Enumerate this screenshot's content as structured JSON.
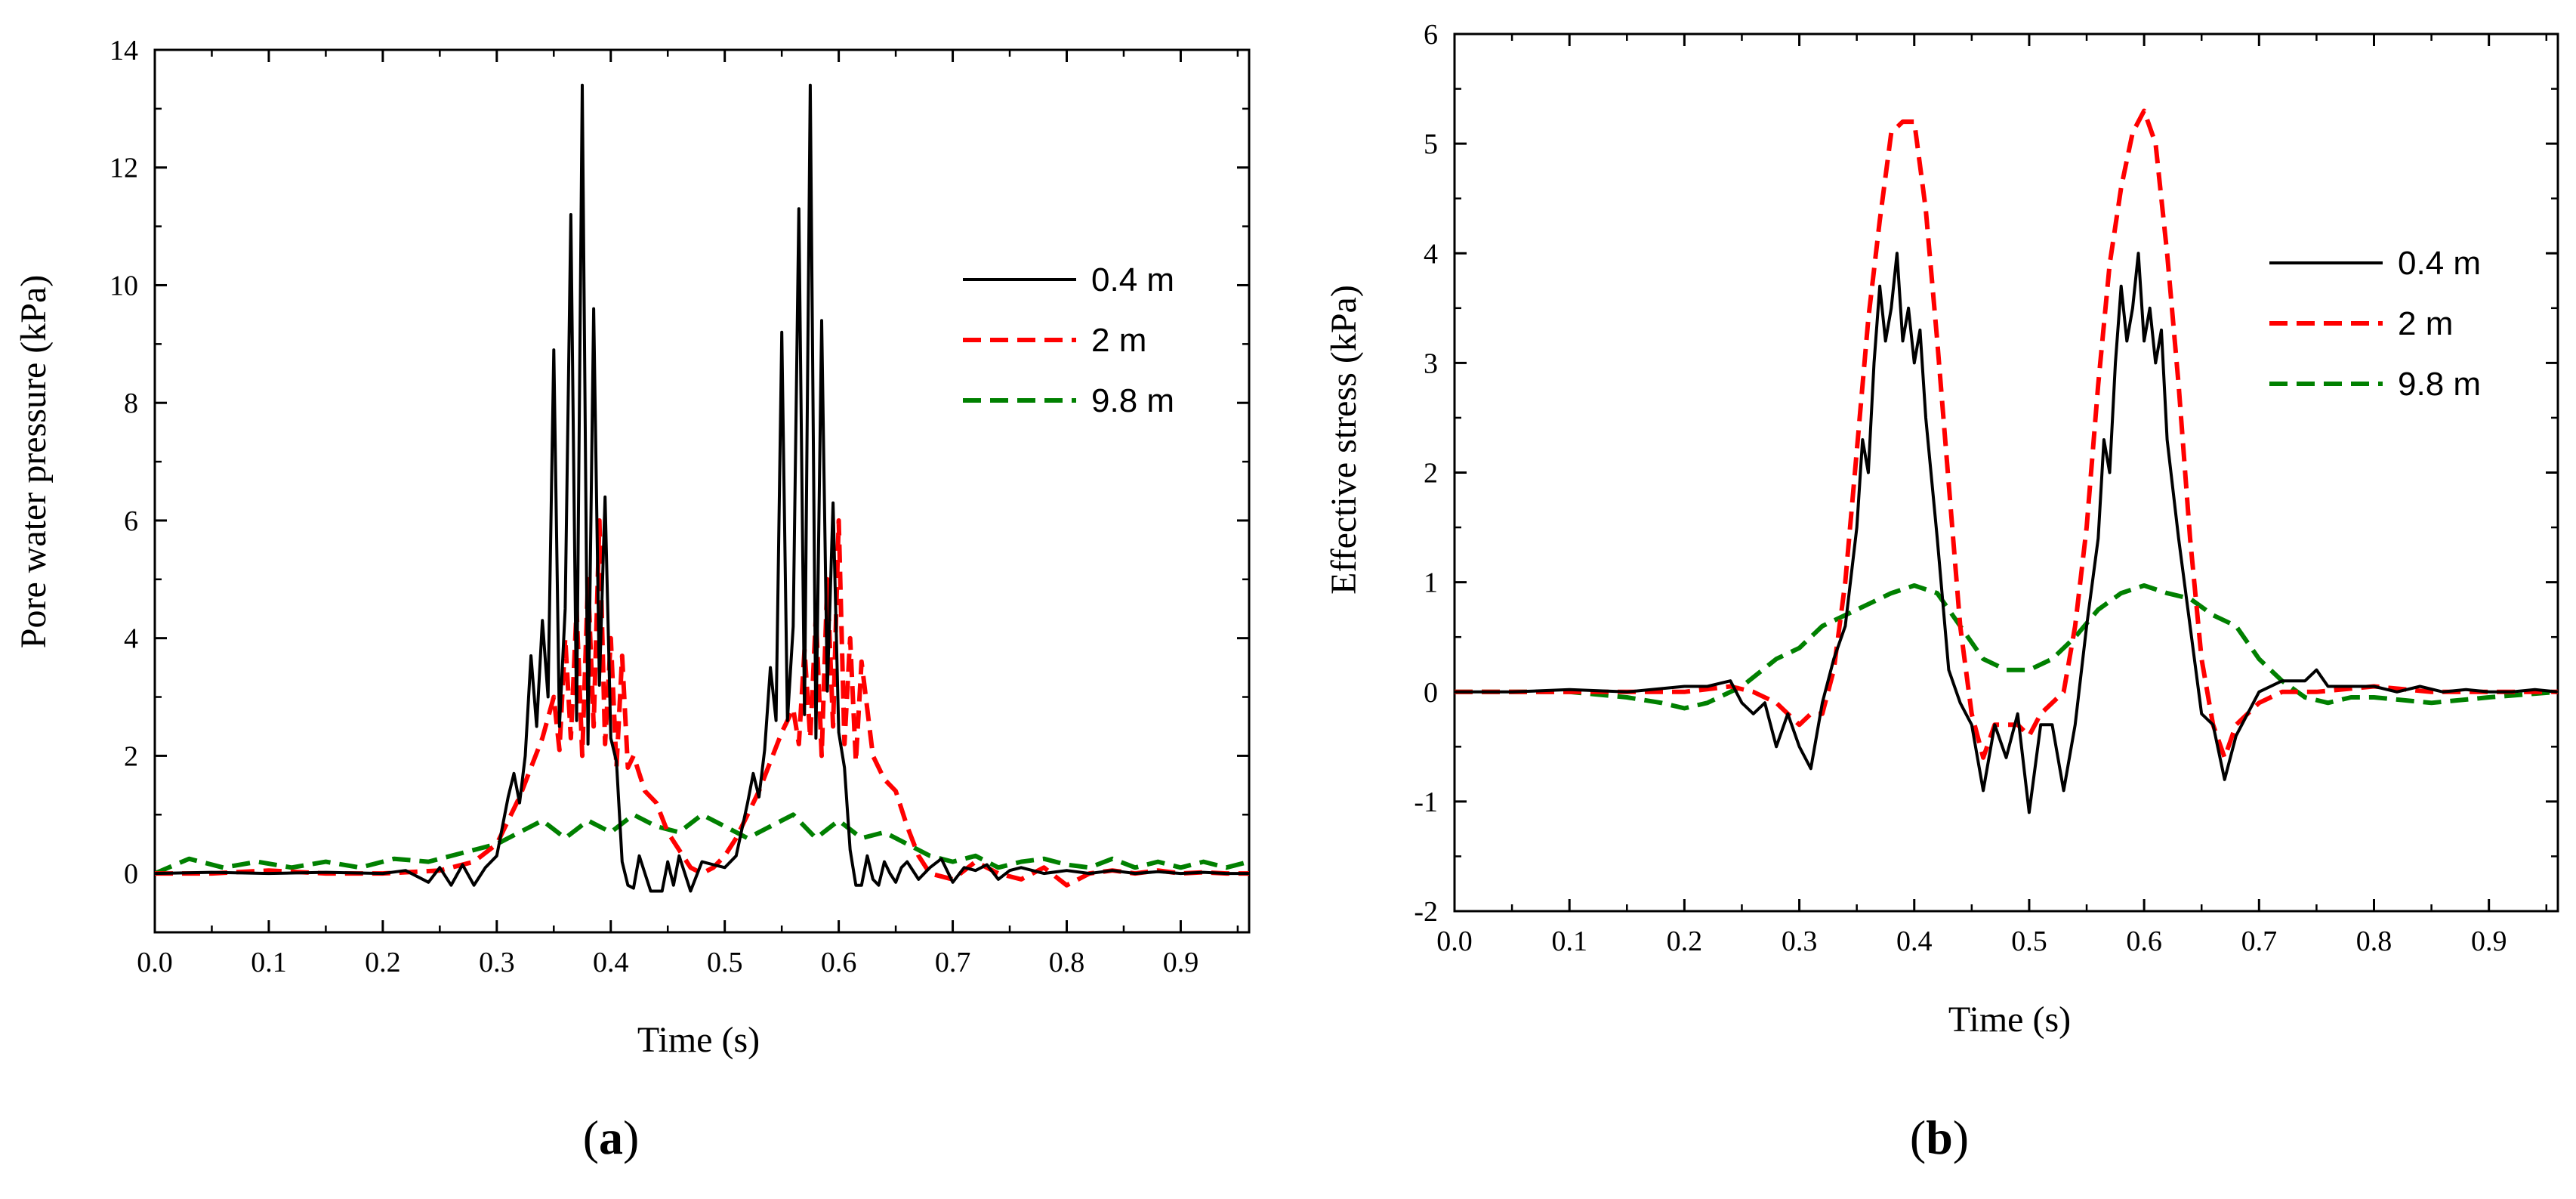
{
  "figure": {
    "panel_a_label": "a",
    "panel_b_label": "b"
  },
  "chart_data": [
    {
      "type": "line",
      "panel": "a",
      "title": "",
      "xlabel": "Time (s)",
      "ylabel": "Pore water pressure (kPa)",
      "xlim": [
        0,
        0.96
      ],
      "ylim": [
        -1,
        14
      ],
      "xticks": [
        0.0,
        0.1,
        0.2,
        0.3,
        0.4,
        0.5,
        0.6,
        0.7,
        0.8,
        0.9
      ],
      "xtick_labels": [
        "0.0",
        "0.1",
        "0.2",
        "0.3",
        "0.4",
        "0.5",
        "0.6",
        "0.7",
        "0.8",
        "0.9"
      ],
      "yticks": [
        0,
        2,
        4,
        6,
        8,
        10,
        12,
        14
      ],
      "ytick_labels": [
        "0",
        "2",
        "4",
        "6",
        "8",
        "10",
        "12",
        "14"
      ],
      "grid": false,
      "legend_position": "right",
      "series": [
        {
          "name": "0.4 m",
          "color": "#000000",
          "style": "solid",
          "x": [
            0,
            0.05,
            0.1,
            0.15,
            0.2,
            0.22,
            0.24,
            0.25,
            0.26,
            0.27,
            0.28,
            0.29,
            0.3,
            0.31,
            0.315,
            0.32,
            0.325,
            0.33,
            0.335,
            0.34,
            0.345,
            0.35,
            0.355,
            0.36,
            0.365,
            0.37,
            0.375,
            0.38,
            0.385,
            0.39,
            0.395,
            0.4,
            0.405,
            0.41,
            0.415,
            0.42,
            0.425,
            0.43,
            0.435,
            0.44,
            0.445,
            0.45,
            0.455,
            0.46,
            0.47,
            0.48,
            0.49,
            0.5,
            0.51,
            0.52,
            0.525,
            0.53,
            0.535,
            0.54,
            0.545,
            0.55,
            0.555,
            0.56,
            0.565,
            0.57,
            0.575,
            0.58,
            0.585,
            0.59,
            0.595,
            0.6,
            0.605,
            0.61,
            0.615,
            0.62,
            0.625,
            0.63,
            0.635,
            0.64,
            0.645,
            0.65,
            0.655,
            0.66,
            0.67,
            0.68,
            0.69,
            0.7,
            0.71,
            0.72,
            0.73,
            0.74,
            0.75,
            0.76,
            0.78,
            0.8,
            0.82,
            0.84,
            0.86,
            0.88,
            0.9,
            0.92,
            0.94,
            0.96
          ],
          "values": [
            0.0,
            0.02,
            0.0,
            0.02,
            0.0,
            0.05,
            -0.15,
            0.1,
            -0.2,
            0.15,
            -0.2,
            0.1,
            0.3,
            1.3,
            1.7,
            1.2,
            2.0,
            3.7,
            2.5,
            4.3,
            3.0,
            8.9,
            2.5,
            4.5,
            11.2,
            2.6,
            13.4,
            2.2,
            9.6,
            3.2,
            6.4,
            2.3,
            1.9,
            0.2,
            -0.2,
            -0.25,
            0.3,
            0.0,
            -0.3,
            -0.3,
            -0.3,
            0.2,
            -0.2,
            0.3,
            -0.3,
            0.2,
            0.15,
            0.1,
            0.3,
            1.2,
            1.7,
            1.3,
            2.1,
            3.5,
            2.6,
            9.2,
            2.6,
            4.2,
            11.3,
            2.7,
            13.4,
            2.3,
            9.4,
            3.1,
            6.3,
            2.4,
            1.8,
            0.4,
            -0.2,
            -0.2,
            0.3,
            -0.1,
            -0.2,
            0.2,
            0.0,
            -0.15,
            0.1,
            0.2,
            -0.1,
            0.1,
            0.25,
            -0.15,
            0.1,
            0.05,
            0.15,
            -0.1,
            0.05,
            0.1,
            0.0,
            0.05,
            0.0,
            0.05,
            0.0,
            0.03,
            0.0,
            0.02,
            0.0,
            0.0
          ]
        },
        {
          "name": "2 m",
          "color": "#ff0000",
          "style": "dashed",
          "x": [
            0,
            0.05,
            0.1,
            0.15,
            0.2,
            0.25,
            0.28,
            0.3,
            0.31,
            0.32,
            0.33,
            0.34,
            0.35,
            0.355,
            0.36,
            0.365,
            0.37,
            0.375,
            0.38,
            0.385,
            0.39,
            0.395,
            0.4,
            0.405,
            0.41,
            0.415,
            0.42,
            0.43,
            0.44,
            0.45,
            0.46,
            0.47,
            0.48,
            0.49,
            0.5,
            0.51,
            0.52,
            0.53,
            0.54,
            0.55,
            0.56,
            0.565,
            0.57,
            0.575,
            0.58,
            0.585,
            0.59,
            0.595,
            0.6,
            0.605,
            0.61,
            0.615,
            0.62,
            0.63,
            0.64,
            0.65,
            0.66,
            0.67,
            0.68,
            0.7,
            0.72,
            0.74,
            0.76,
            0.78,
            0.8,
            0.82,
            0.84,
            0.86,
            0.88,
            0.9,
            0.92,
            0.94,
            0.96
          ],
          "values": [
            0.0,
            0.0,
            0.05,
            0.0,
            0.0,
            0.05,
            0.2,
            0.5,
            0.9,
            1.3,
            1.8,
            2.3,
            3.0,
            2.1,
            4.0,
            2.3,
            4.5,
            2.0,
            5.0,
            2.5,
            6.0,
            2.2,
            4.0,
            1.8,
            3.7,
            1.8,
            2.0,
            1.4,
            1.2,
            0.7,
            0.4,
            0.1,
            0.0,
            0.1,
            0.3,
            0.6,
            1.0,
            1.4,
            1.9,
            2.4,
            2.8,
            2.2,
            3.8,
            2.3,
            4.4,
            2.0,
            5.0,
            2.5,
            6.0,
            2.2,
            4.0,
            1.9,
            3.6,
            2.0,
            1.6,
            1.4,
            0.8,
            0.3,
            0.0,
            -0.1,
            0.2,
            0.0,
            -0.1,
            0.1,
            -0.2,
            0.0,
            0.05,
            0.0,
            0.05,
            0.0,
            0.02,
            0.0,
            0.0
          ]
        },
        {
          "name": "9.8 m",
          "color": "#008000",
          "style": "dashed",
          "x": [
            0,
            0.03,
            0.06,
            0.09,
            0.12,
            0.15,
            0.18,
            0.21,
            0.24,
            0.27,
            0.3,
            0.32,
            0.34,
            0.36,
            0.38,
            0.4,
            0.42,
            0.44,
            0.46,
            0.48,
            0.5,
            0.52,
            0.54,
            0.56,
            0.58,
            0.6,
            0.62,
            0.64,
            0.66,
            0.68,
            0.7,
            0.72,
            0.74,
            0.76,
            0.78,
            0.8,
            0.82,
            0.84,
            0.86,
            0.88,
            0.9,
            0.92,
            0.94,
            0.96
          ],
          "values": [
            0.0,
            0.25,
            0.1,
            0.2,
            0.1,
            0.2,
            0.1,
            0.25,
            0.2,
            0.35,
            0.5,
            0.7,
            0.9,
            0.6,
            0.9,
            0.7,
            1.0,
            0.8,
            0.7,
            1.0,
            0.8,
            0.6,
            0.8,
            1.0,
            0.6,
            0.9,
            0.6,
            0.7,
            0.5,
            0.3,
            0.2,
            0.3,
            0.1,
            0.2,
            0.25,
            0.15,
            0.1,
            0.25,
            0.1,
            0.2,
            0.1,
            0.2,
            0.1,
            0.2
          ]
        }
      ]
    },
    {
      "type": "line",
      "panel": "b",
      "title": "",
      "xlabel": "Time (s)",
      "ylabel": "Effective stress (kPa)",
      "xlim": [
        0,
        0.96
      ],
      "ylim": [
        -2,
        6
      ],
      "xticks": [
        0.0,
        0.1,
        0.2,
        0.3,
        0.4,
        0.5,
        0.6,
        0.7,
        0.8,
        0.9
      ],
      "xtick_labels": [
        "0.0",
        "0.1",
        "0.2",
        "0.3",
        "0.4",
        "0.5",
        "0.6",
        "0.7",
        "0.8",
        "0.9"
      ],
      "yticks": [
        -2,
        -1,
        0,
        1,
        2,
        3,
        4,
        5,
        6
      ],
      "ytick_labels": [
        "-2",
        "-1",
        "0",
        "1",
        "2",
        "3",
        "4",
        "5",
        "6"
      ],
      "grid": false,
      "legend_position": "right",
      "series": [
        {
          "name": "0.4 m",
          "color": "#000000",
          "style": "solid",
          "x": [
            0,
            0.05,
            0.1,
            0.15,
            0.2,
            0.22,
            0.24,
            0.25,
            0.26,
            0.27,
            0.28,
            0.29,
            0.3,
            0.31,
            0.32,
            0.33,
            0.34,
            0.35,
            0.355,
            0.36,
            0.365,
            0.37,
            0.375,
            0.38,
            0.385,
            0.39,
            0.395,
            0.4,
            0.405,
            0.41,
            0.42,
            0.43,
            0.44,
            0.45,
            0.46,
            0.47,
            0.48,
            0.49,
            0.5,
            0.51,
            0.52,
            0.53,
            0.54,
            0.55,
            0.56,
            0.565,
            0.57,
            0.575,
            0.58,
            0.585,
            0.59,
            0.595,
            0.6,
            0.605,
            0.61,
            0.615,
            0.62,
            0.63,
            0.64,
            0.65,
            0.66,
            0.67,
            0.68,
            0.69,
            0.7,
            0.72,
            0.74,
            0.75,
            0.76,
            0.78,
            0.8,
            0.82,
            0.84,
            0.86,
            0.88,
            0.9,
            0.92,
            0.94,
            0.96
          ],
          "values": [
            0.0,
            0.0,
            0.02,
            0.0,
            0.05,
            0.05,
            0.1,
            -0.1,
            -0.2,
            -0.1,
            -0.5,
            -0.2,
            -0.5,
            -0.7,
            -0.1,
            0.3,
            0.6,
            1.5,
            2.3,
            2.0,
            3.0,
            3.7,
            3.2,
            3.5,
            4.0,
            3.2,
            3.5,
            3.0,
            3.3,
            2.5,
            1.4,
            0.2,
            -0.1,
            -0.3,
            -0.9,
            -0.3,
            -0.6,
            -0.2,
            -1.1,
            -0.3,
            -0.3,
            -0.9,
            -0.3,
            0.6,
            1.4,
            2.3,
            2.0,
            3.0,
            3.7,
            3.2,
            3.5,
            4.0,
            3.2,
            3.5,
            3.0,
            3.3,
            2.3,
            1.4,
            0.6,
            -0.2,
            -0.3,
            -0.8,
            -0.4,
            -0.2,
            0.0,
            0.1,
            0.1,
            0.2,
            0.05,
            0.05,
            0.05,
            0.0,
            0.05,
            0.0,
            0.02,
            0.0,
            0.0,
            0.02,
            0.0
          ]
        },
        {
          "name": "2 m",
          "color": "#ff0000",
          "style": "dashed",
          "x": [
            0,
            0.1,
            0.2,
            0.24,
            0.26,
            0.28,
            0.3,
            0.31,
            0.32,
            0.33,
            0.34,
            0.35,
            0.36,
            0.37,
            0.38,
            0.39,
            0.4,
            0.41,
            0.42,
            0.43,
            0.44,
            0.45,
            0.46,
            0.47,
            0.48,
            0.49,
            0.5,
            0.51,
            0.52,
            0.53,
            0.54,
            0.55,
            0.56,
            0.57,
            0.58,
            0.59,
            0.6,
            0.61,
            0.62,
            0.63,
            0.64,
            0.65,
            0.66,
            0.67,
            0.68,
            0.69,
            0.7,
            0.72,
            0.75,
            0.8,
            0.85,
            0.9,
            0.96
          ],
          "values": [
            0.0,
            0.0,
            0.0,
            0.05,
            0.0,
            -0.1,
            -0.3,
            -0.2,
            -0.2,
            0.2,
            1.0,
            2.2,
            3.4,
            4.3,
            5.1,
            5.2,
            5.2,
            4.4,
            3.2,
            1.9,
            0.6,
            -0.2,
            -0.6,
            -0.3,
            -0.3,
            -0.3,
            -0.4,
            -0.2,
            -0.1,
            0.0,
            0.6,
            1.5,
            2.8,
            3.9,
            4.6,
            5.1,
            5.3,
            5.0,
            4.0,
            2.8,
            1.4,
            0.3,
            -0.3,
            -0.6,
            -0.3,
            -0.2,
            -0.1,
            0.0,
            0.0,
            0.05,
            0.0,
            0.0,
            0.0
          ]
        },
        {
          "name": "9.8 m",
          "color": "#008000",
          "style": "dashed",
          "x": [
            0,
            0.05,
            0.1,
            0.15,
            0.18,
            0.2,
            0.22,
            0.25,
            0.28,
            0.3,
            0.32,
            0.34,
            0.36,
            0.38,
            0.4,
            0.42,
            0.44,
            0.46,
            0.48,
            0.5,
            0.52,
            0.54,
            0.56,
            0.58,
            0.6,
            0.62,
            0.64,
            0.66,
            0.68,
            0.7,
            0.72,
            0.74,
            0.76,
            0.78,
            0.8,
            0.85,
            0.9,
            0.96
          ],
          "values": [
            0.0,
            0.0,
            0.0,
            -0.05,
            -0.1,
            -0.15,
            -0.1,
            0.05,
            0.3,
            0.4,
            0.6,
            0.7,
            0.8,
            0.9,
            0.97,
            0.9,
            0.6,
            0.3,
            0.2,
            0.2,
            0.3,
            0.5,
            0.75,
            0.9,
            0.97,
            0.9,
            0.85,
            0.7,
            0.6,
            0.3,
            0.1,
            -0.05,
            -0.1,
            -0.05,
            -0.05,
            -0.1,
            -0.05,
            0.0
          ]
        }
      ]
    }
  ]
}
